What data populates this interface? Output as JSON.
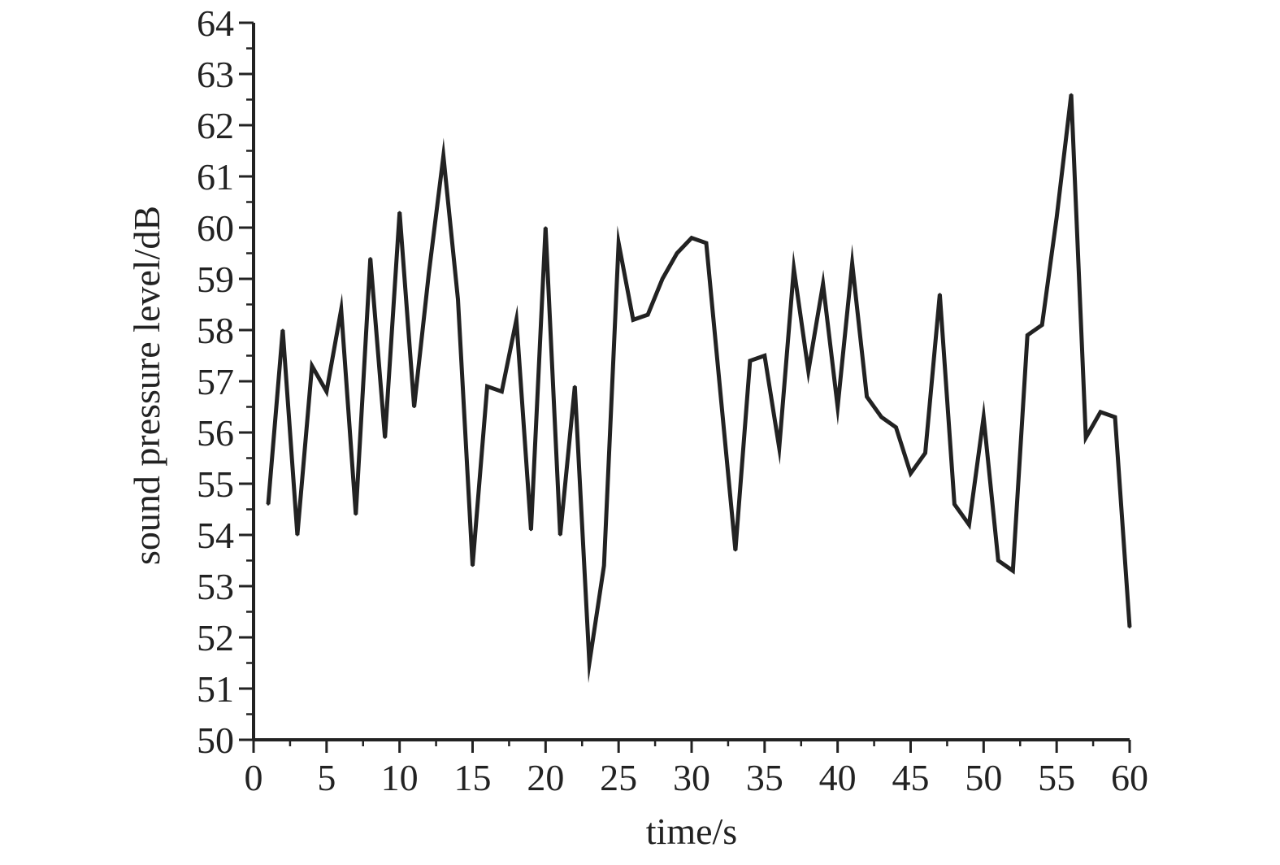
{
  "chart_data": {
    "type": "line",
    "title": "",
    "xlabel": "time/s",
    "ylabel": "sound pressure level/dB",
    "xlim": [
      0,
      60
    ],
    "ylim": [
      50,
      64
    ],
    "xticks": [
      0,
      5,
      10,
      15,
      20,
      25,
      30,
      35,
      40,
      45,
      50,
      55,
      60
    ],
    "yticks": [
      50,
      51,
      52,
      53,
      54,
      55,
      56,
      57,
      58,
      59,
      60,
      61,
      62,
      63,
      64
    ],
    "grid": false,
    "legend": "none",
    "line_color": "#222222",
    "series": [
      {
        "x": [
          1,
          2,
          3,
          4,
          5,
          6,
          7,
          8,
          9,
          10,
          11,
          12,
          13,
          14,
          15,
          16,
          17,
          18,
          19,
          20,
          21,
          22,
          23,
          24,
          25,
          26,
          27,
          28,
          29,
          30,
          31,
          32,
          33,
          34,
          35,
          36,
          37,
          38,
          39,
          40,
          41,
          42,
          43,
          44,
          45,
          46,
          47,
          48,
          49,
          50,
          51,
          52,
          53,
          54,
          55,
          56,
          57,
          58,
          59,
          60
        ],
        "values": [
          54.6,
          58.0,
          54.0,
          57.3,
          56.8,
          58.4,
          54.4,
          59.4,
          55.9,
          60.3,
          56.5,
          59.1,
          61.4,
          58.6,
          53.4,
          56.9,
          56.8,
          58.2,
          54.1,
          60.0,
          54.0,
          56.9,
          51.5,
          53.4,
          59.7,
          58.2,
          58.3,
          59.0,
          59.5,
          59.8,
          59.7,
          56.7,
          53.7,
          57.4,
          57.5,
          55.7,
          59.2,
          57.2,
          58.9,
          56.5,
          59.3,
          56.7,
          56.3,
          56.1,
          55.2,
          55.6,
          58.7,
          54.6,
          54.2,
          56.3,
          53.5,
          53.3,
          57.9,
          58.1,
          60.2,
          62.6,
          55.9,
          56.4,
          56.3,
          52.2
        ]
      }
    ]
  }
}
